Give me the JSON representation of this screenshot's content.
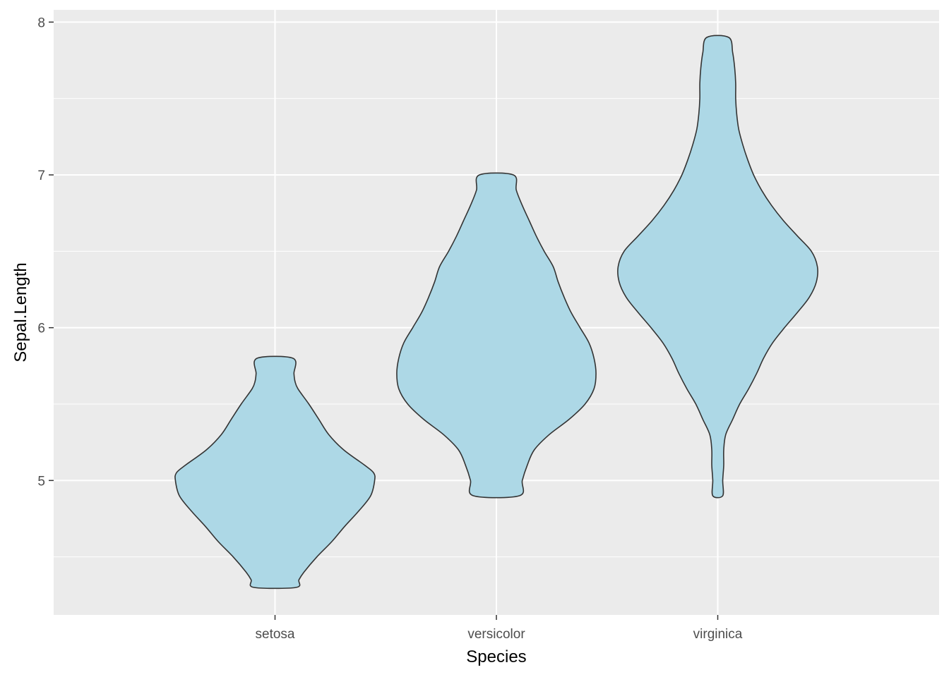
{
  "chart_data": {
    "type": "violin",
    "title": "",
    "xlabel": "Species",
    "ylabel": "Sepal.Length",
    "categories": [
      "setosa",
      "versicolor",
      "virginica"
    ],
    "ylim": [
      4.12,
      8.08
    ],
    "y_ticks": [
      5,
      6,
      7,
      8
    ],
    "y_minor_ticks": [
      4.5,
      5.5,
      6.5,
      7.5
    ],
    "grid": true,
    "legend": "none",
    "style": {
      "panel_background": "#EBEBEB",
      "grid_color": "#FFFFFF",
      "violin_fill": "#ADD8E6",
      "violin_stroke": "#333333",
      "tick_label_color": "#4D4D4D"
    },
    "series": [
      {
        "category": "setosa",
        "min": 4.3,
        "max": 5.8,
        "density_profile": [
          [
            4.3,
            0.21
          ],
          [
            4.35,
            0.24
          ],
          [
            4.4,
            0.29
          ],
          [
            4.5,
            0.42
          ],
          [
            4.6,
            0.57
          ],
          [
            4.7,
            0.7
          ],
          [
            4.8,
            0.84
          ],
          [
            4.9,
            0.96
          ],
          [
            5.0,
            1.0
          ],
          [
            5.05,
            0.99
          ],
          [
            5.1,
            0.9
          ],
          [
            5.2,
            0.69
          ],
          [
            5.3,
            0.54
          ],
          [
            5.4,
            0.44
          ],
          [
            5.5,
            0.34
          ],
          [
            5.6,
            0.23
          ],
          [
            5.65,
            0.2
          ],
          [
            5.7,
            0.19
          ],
          [
            5.8,
            0.18
          ]
        ]
      },
      {
        "category": "versicolor",
        "min": 4.9,
        "max": 7.0,
        "density_profile": [
          [
            4.9,
            0.23
          ],
          [
            5.0,
            0.26
          ],
          [
            5.1,
            0.31
          ],
          [
            5.2,
            0.38
          ],
          [
            5.3,
            0.53
          ],
          [
            5.4,
            0.73
          ],
          [
            5.5,
            0.89
          ],
          [
            5.6,
            0.98
          ],
          [
            5.7,
            1.0
          ],
          [
            5.8,
            0.98
          ],
          [
            5.9,
            0.93
          ],
          [
            6.0,
            0.84
          ],
          [
            6.1,
            0.75
          ],
          [
            6.2,
            0.68
          ],
          [
            6.3,
            0.62
          ],
          [
            6.4,
            0.57
          ],
          [
            6.5,
            0.48
          ],
          [
            6.6,
            0.4
          ],
          [
            6.7,
            0.33
          ],
          [
            6.8,
            0.26
          ],
          [
            6.9,
            0.2
          ],
          [
            7.0,
            0.17
          ]
        ]
      },
      {
        "category": "virginica",
        "min": 4.9,
        "max": 7.9,
        "density_profile": [
          [
            4.9,
            0.05
          ],
          [
            5.0,
            0.05
          ],
          [
            5.1,
            0.06
          ],
          [
            5.2,
            0.06
          ],
          [
            5.3,
            0.08
          ],
          [
            5.4,
            0.15
          ],
          [
            5.5,
            0.22
          ],
          [
            5.6,
            0.31
          ],
          [
            5.7,
            0.39
          ],
          [
            5.8,
            0.46
          ],
          [
            5.9,
            0.55
          ],
          [
            6.0,
            0.67
          ],
          [
            6.1,
            0.8
          ],
          [
            6.2,
            0.92
          ],
          [
            6.3,
            0.99
          ],
          [
            6.4,
            1.0
          ],
          [
            6.5,
            0.94
          ],
          [
            6.6,
            0.8
          ],
          [
            6.7,
            0.66
          ],
          [
            6.8,
            0.54
          ],
          [
            6.9,
            0.44
          ],
          [
            7.0,
            0.36
          ],
          [
            7.1,
            0.3
          ],
          [
            7.2,
            0.25
          ],
          [
            7.3,
            0.21
          ],
          [
            7.4,
            0.19
          ],
          [
            7.5,
            0.18
          ],
          [
            7.6,
            0.18
          ],
          [
            7.7,
            0.17
          ],
          [
            7.8,
            0.15
          ],
          [
            7.9,
            0.11
          ]
        ]
      }
    ]
  }
}
